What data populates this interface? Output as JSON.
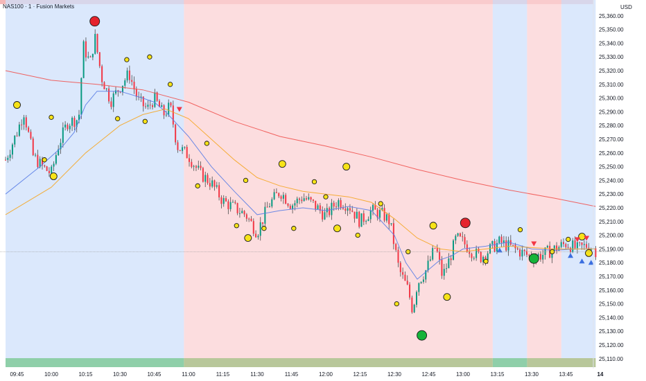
{
  "header": {
    "title": "NAS100 · 1 · Fusion Markets",
    "currency": "USD"
  },
  "colors": {
    "bull": "#089981",
    "bear": "#f23645",
    "wick": "#4a4a4a",
    "ma_fast": "#5b7ee5",
    "ma_mid": "#f5a623",
    "ma_slow": "#ef5350",
    "bg_blue": "#cfe0fb",
    "bg_red": "#fbd2d4",
    "dot_yellow": "#f7e318",
    "dot_red": "#e5232d",
    "dot_green": "#16b33a",
    "tri_red": "#f23645",
    "tri_blue": "#3b6fe0",
    "strip_green": "#8fcfa9",
    "strip_olive": "#b8c79a"
  },
  "chart_data": {
    "type": "candlestick",
    "title": "NAS100 · 1 · Fusion Markets",
    "currency": "USD",
    "y_ticks": [
      "25,360.00",
      "25,350.00",
      "25,340.00",
      "25,330.00",
      "25,320.00",
      "25,310.00",
      "25,300.00",
      "25,290.00",
      "25,280.00",
      "25,270.00",
      "25,260.00",
      "25,250.00",
      "25,240.00",
      "25,230.00",
      "25,220.00",
      "25,210.00",
      "25,200.00",
      "25,190.00",
      "25,180.00",
      "25,170.00",
      "25,160.00",
      "25,150.00",
      "25,140.00",
      "25,130.00",
      "25,120.00",
      "25,110.00"
    ],
    "x_ticks": [
      "09:45",
      "10:00",
      "10:15",
      "10:30",
      "10:45",
      "11:00",
      "11:15",
      "11:30",
      "11:45",
      "12:00",
      "12:15",
      "12:30",
      "12:45",
      "13:00",
      "13:15",
      "13:30",
      "13:45",
      "14"
    ],
    "ylim": [
      25105,
      25370
    ],
    "time_range": [
      "09:40",
      "14:00"
    ],
    "close_path": [
      [
        "09:40",
        25255
      ],
      [
        "09:45",
        25275
      ],
      [
        "09:48",
        25290
      ],
      [
        "09:52",
        25258
      ],
      [
        "09:56",
        25250
      ],
      [
        "10:00",
        25245
      ],
      [
        "10:03",
        25265
      ],
      [
        "10:07",
        25282
      ],
      [
        "10:12",
        25285
      ],
      [
        "10:14",
        25338
      ],
      [
        "10:17",
        25325
      ],
      [
        "10:19",
        25345
      ],
      [
        "10:22",
        25315
      ],
      [
        "10:26",
        25298
      ],
      [
        "10:30",
        25308
      ],
      [
        "10:34",
        25318
      ],
      [
        "10:38",
        25298
      ],
      [
        "10:42",
        25292
      ],
      [
        "10:45",
        25300
      ],
      [
        "10:49",
        25288
      ],
      [
        "10:52",
        25294
      ],
      [
        "10:55",
        25265
      ],
      [
        "11:00",
        25258
      ],
      [
        "11:05",
        25245
      ],
      [
        "11:10",
        25238
      ],
      [
        "11:15",
        25225
      ],
      [
        "11:20",
        25220
      ],
      [
        "11:25",
        25215
      ],
      [
        "11:30",
        25202
      ],
      [
        "11:35",
        25222
      ],
      [
        "11:40",
        25232
      ],
      [
        "11:45",
        25222
      ],
      [
        "11:50",
        25228
      ],
      [
        "11:55",
        25222
      ],
      [
        "12:00",
        25214
      ],
      [
        "12:05",
        25225
      ],
      [
        "12:10",
        25222
      ],
      [
        "12:15",
        25210
      ],
      [
        "12:20",
        25218
      ],
      [
        "12:25",
        25215
      ],
      [
        "12:28",
        25210
      ],
      [
        "12:32",
        25175
      ],
      [
        "12:36",
        25160
      ],
      [
        "12:38",
        25145
      ],
      [
        "12:40",
        25165
      ],
      [
        "12:44",
        25175
      ],
      [
        "12:48",
        25192
      ],
      [
        "12:51",
        25170
      ],
      [
        "12:54",
        25182
      ],
      [
        "12:57",
        25198
      ],
      [
        "13:00",
        25195
      ],
      [
        "13:04",
        25188
      ],
      [
        "13:08",
        25184
      ],
      [
        "13:12",
        25190
      ],
      [
        "13:16",
        25195
      ],
      [
        "13:20",
        25192
      ],
      [
        "13:25",
        25188
      ],
      [
        "13:30",
        25184
      ],
      [
        "13:35",
        25186
      ],
      [
        "13:40",
        25190
      ],
      [
        "13:45",
        25194
      ],
      [
        "13:50",
        25190
      ],
      [
        "13:55",
        25193
      ],
      [
        "13:58",
        25189
      ]
    ],
    "candle_count": 258,
    "series": [
      {
        "kind": "ma_fast",
        "points": [
          [
            "09:40",
            25230
          ],
          [
            "09:55",
            25250
          ],
          [
            "10:05",
            25265
          ],
          [
            "10:10",
            25275
          ],
          [
            "10:15",
            25295
          ],
          [
            "10:20",
            25305
          ],
          [
            "10:30",
            25305
          ],
          [
            "10:40",
            25300
          ],
          [
            "10:45",
            25297
          ],
          [
            "10:50",
            25290
          ],
          [
            "11:00",
            25272
          ],
          [
            "11:10",
            25250
          ],
          [
            "11:20",
            25232
          ],
          [
            "11:30",
            25215
          ],
          [
            "11:40",
            25218
          ],
          [
            "11:50",
            25220
          ],
          [
            "12:00",
            25218
          ],
          [
            "12:10",
            25221
          ],
          [
            "12:20",
            25218
          ],
          [
            "12:30",
            25200
          ],
          [
            "12:35",
            25180
          ],
          [
            "12:40",
            25168
          ],
          [
            "12:45",
            25175
          ],
          [
            "12:50",
            25182
          ],
          [
            "12:55",
            25185
          ],
          [
            "13:00",
            25190
          ],
          [
            "13:10",
            25192
          ],
          [
            "13:20",
            25195
          ],
          [
            "13:30",
            25190
          ],
          [
            "13:40",
            25189
          ],
          [
            "13:50",
            25190
          ],
          [
            "13:58",
            25190
          ]
        ]
      },
      {
        "kind": "ma_mid",
        "points": [
          [
            "09:40",
            25215
          ],
          [
            "10:00",
            25235
          ],
          [
            "10:15",
            25260
          ],
          [
            "10:30",
            25280
          ],
          [
            "10:40",
            25288
          ],
          [
            "10:50",
            25292
          ],
          [
            "11:00",
            25285
          ],
          [
            "11:10",
            25270
          ],
          [
            "11:20",
            25255
          ],
          [
            "11:30",
            25242
          ],
          [
            "11:40",
            25236
          ],
          [
            "11:50",
            25232
          ],
          [
            "12:00",
            25230
          ],
          [
            "12:10",
            25228
          ],
          [
            "12:20",
            25224
          ],
          [
            "12:30",
            25212
          ],
          [
            "12:40",
            25198
          ],
          [
            "12:50",
            25190
          ],
          [
            "13:00",
            25188
          ],
          [
            "13:10",
            25190
          ],
          [
            "13:20",
            25192
          ],
          [
            "13:30",
            25191
          ],
          [
            "13:40",
            25190
          ],
          [
            "13:58",
            25190
          ]
        ]
      },
      {
        "kind": "ma_slow",
        "points": [
          [
            "09:40",
            25320
          ],
          [
            "10:00",
            25313
          ],
          [
            "10:20",
            25310
          ],
          [
            "10:40",
            25306
          ],
          [
            "11:00",
            25297
          ],
          [
            "11:20",
            25283
          ],
          [
            "11:40",
            25272
          ],
          [
            "12:00",
            25265
          ],
          [
            "12:20",
            25257
          ],
          [
            "12:40",
            25248
          ],
          [
            "13:00",
            25240
          ],
          [
            "13:20",
            25233
          ],
          [
            "13:40",
            25227
          ],
          [
            "13:58",
            25221
          ]
        ]
      }
    ],
    "background_regions": [
      {
        "from": "09:40",
        "to": "10:58",
        "kind": "bg_blue"
      },
      {
        "from": "10:58",
        "to": "13:13",
        "kind": "bg_red"
      },
      {
        "from": "13:13",
        "to": "13:28",
        "kind": "bg_blue"
      },
      {
        "from": "13:28",
        "to": "13:43",
        "kind": "bg_red"
      },
      {
        "from": "13:43",
        "to": "13:58",
        "kind": "bg_blue"
      }
    ],
    "bottom_strip": [
      {
        "from": "09:40",
        "to": "10:58",
        "kind": "strip_green"
      },
      {
        "from": "10:58",
        "to": "13:13",
        "kind": "strip_olive"
      },
      {
        "from": "13:13",
        "to": "13:28",
        "kind": "strip_green"
      },
      {
        "from": "13:28",
        "to": "13:58",
        "kind": "strip_olive"
      }
    ],
    "markers": [
      {
        "t": "10:19",
        "y": 25356,
        "shape": "circle",
        "size": "large",
        "color": "dot_red"
      },
      {
        "t": "12:42",
        "y": 25127,
        "shape": "circle",
        "size": "large",
        "color": "dot_green"
      },
      {
        "t": "13:01",
        "y": 25209,
        "shape": "circle",
        "size": "large",
        "color": "dot_red"
      },
      {
        "t": "13:31",
        "y": 25183,
        "shape": "circle",
        "size": "large",
        "color": "dot_green"
      },
      {
        "t": "09:45",
        "y": 25295,
        "shape": "circle",
        "size": "medium",
        "color": "dot_yellow"
      },
      {
        "t": "10:01",
        "y": 25243,
        "shape": "circle",
        "size": "medium",
        "color": "dot_yellow"
      },
      {
        "t": "11:26",
        "y": 25198,
        "shape": "circle",
        "size": "medium",
        "color": "dot_yellow"
      },
      {
        "t": "11:41",
        "y": 25252,
        "shape": "circle",
        "size": "medium",
        "color": "dot_yellow"
      },
      {
        "t": "12:05",
        "y": 25205,
        "shape": "circle",
        "size": "medium",
        "color": "dot_yellow"
      },
      {
        "t": "12:09",
        "y": 25250,
        "shape": "circle",
        "size": "medium",
        "color": "dot_yellow"
      },
      {
        "t": "12:47",
        "y": 25207,
        "shape": "circle",
        "size": "medium",
        "color": "dot_yellow"
      },
      {
        "t": "12:53",
        "y": 25155,
        "shape": "circle",
        "size": "medium",
        "color": "dot_yellow"
      },
      {
        "t": "13:52",
        "y": 25199,
        "shape": "circle",
        "size": "medium",
        "color": "dot_yellow"
      },
      {
        "t": "13:55",
        "y": 25187,
        "shape": "circle",
        "size": "medium",
        "color": "dot_yellow"
      },
      {
        "t": "09:57",
        "y": 25255,
        "shape": "circle",
        "size": "small",
        "color": "dot_yellow"
      },
      {
        "t": "10:00",
        "y": 25286,
        "shape": "circle",
        "size": "small",
        "color": "dot_yellow"
      },
      {
        "t": "10:29",
        "y": 25285,
        "shape": "circle",
        "size": "small",
        "color": "dot_yellow"
      },
      {
        "t": "10:33",
        "y": 25328,
        "shape": "circle",
        "size": "small",
        "color": "dot_yellow"
      },
      {
        "t": "10:41",
        "y": 25283,
        "shape": "circle",
        "size": "small",
        "color": "dot_yellow"
      },
      {
        "t": "10:43",
        "y": 25330,
        "shape": "circle",
        "size": "small",
        "color": "dot_yellow"
      },
      {
        "t": "10:52",
        "y": 25310,
        "shape": "circle",
        "size": "small",
        "color": "dot_yellow"
      },
      {
        "t": "11:04",
        "y": 25236,
        "shape": "circle",
        "size": "small",
        "color": "dot_yellow"
      },
      {
        "t": "11:08",
        "y": 25267,
        "shape": "circle",
        "size": "small",
        "color": "dot_yellow"
      },
      {
        "t": "11:21",
        "y": 25207,
        "shape": "circle",
        "size": "small",
        "color": "dot_yellow"
      },
      {
        "t": "11:25",
        "y": 25240,
        "shape": "circle",
        "size": "small",
        "color": "dot_yellow"
      },
      {
        "t": "11:33",
        "y": 25205,
        "shape": "circle",
        "size": "small",
        "color": "dot_yellow"
      },
      {
        "t": "11:46",
        "y": 25205,
        "shape": "circle",
        "size": "small",
        "color": "dot_yellow"
      },
      {
        "t": "11:55",
        "y": 25239,
        "shape": "circle",
        "size": "small",
        "color": "dot_yellow"
      },
      {
        "t": "12:00",
        "y": 25228,
        "shape": "circle",
        "size": "small",
        "color": "dot_yellow"
      },
      {
        "t": "12:14",
        "y": 25200,
        "shape": "circle",
        "size": "small",
        "color": "dot_yellow"
      },
      {
        "t": "12:24",
        "y": 25223,
        "shape": "circle",
        "size": "small",
        "color": "dot_yellow"
      },
      {
        "t": "12:31",
        "y": 25150,
        "shape": "circle",
        "size": "small",
        "color": "dot_yellow"
      },
      {
        "t": "12:36",
        "y": 25188,
        "shape": "circle",
        "size": "small",
        "color": "dot_yellow"
      },
      {
        "t": "13:10",
        "y": 25181,
        "shape": "circle",
        "size": "small",
        "color": "dot_yellow"
      },
      {
        "t": "13:25",
        "y": 25204,
        "shape": "circle",
        "size": "small",
        "color": "dot_yellow"
      },
      {
        "t": "13:39",
        "y": 25188,
        "shape": "circle",
        "size": "small",
        "color": "dot_yellow"
      },
      {
        "t": "13:46",
        "y": 25197,
        "shape": "circle",
        "size": "small",
        "color": "dot_yellow"
      },
      {
        "t": "10:56",
        "y": 25292,
        "shape": "triangle-down",
        "color": "tri_red"
      },
      {
        "t": "13:31",
        "y": 25194,
        "shape": "triangle-down",
        "color": "tri_red"
      },
      {
        "t": "13:50",
        "y": 25197,
        "shape": "triangle-down",
        "color": "tri_red"
      },
      {
        "t": "13:54",
        "y": 25198,
        "shape": "triangle-down",
        "color": "tri_red"
      },
      {
        "t": "13:16",
        "y": 25189,
        "shape": "triangle-up",
        "color": "tri_blue"
      },
      {
        "t": "13:47",
        "y": 25185,
        "shape": "triangle-up",
        "color": "tri_blue"
      },
      {
        "t": "13:52",
        "y": 25181,
        "shape": "triangle-up",
        "color": "tri_blue"
      },
      {
        "t": "13:56",
        "y": 25180,
        "shape": "triangle-up",
        "color": "tri_blue"
      }
    ],
    "price_line": 25188
  }
}
